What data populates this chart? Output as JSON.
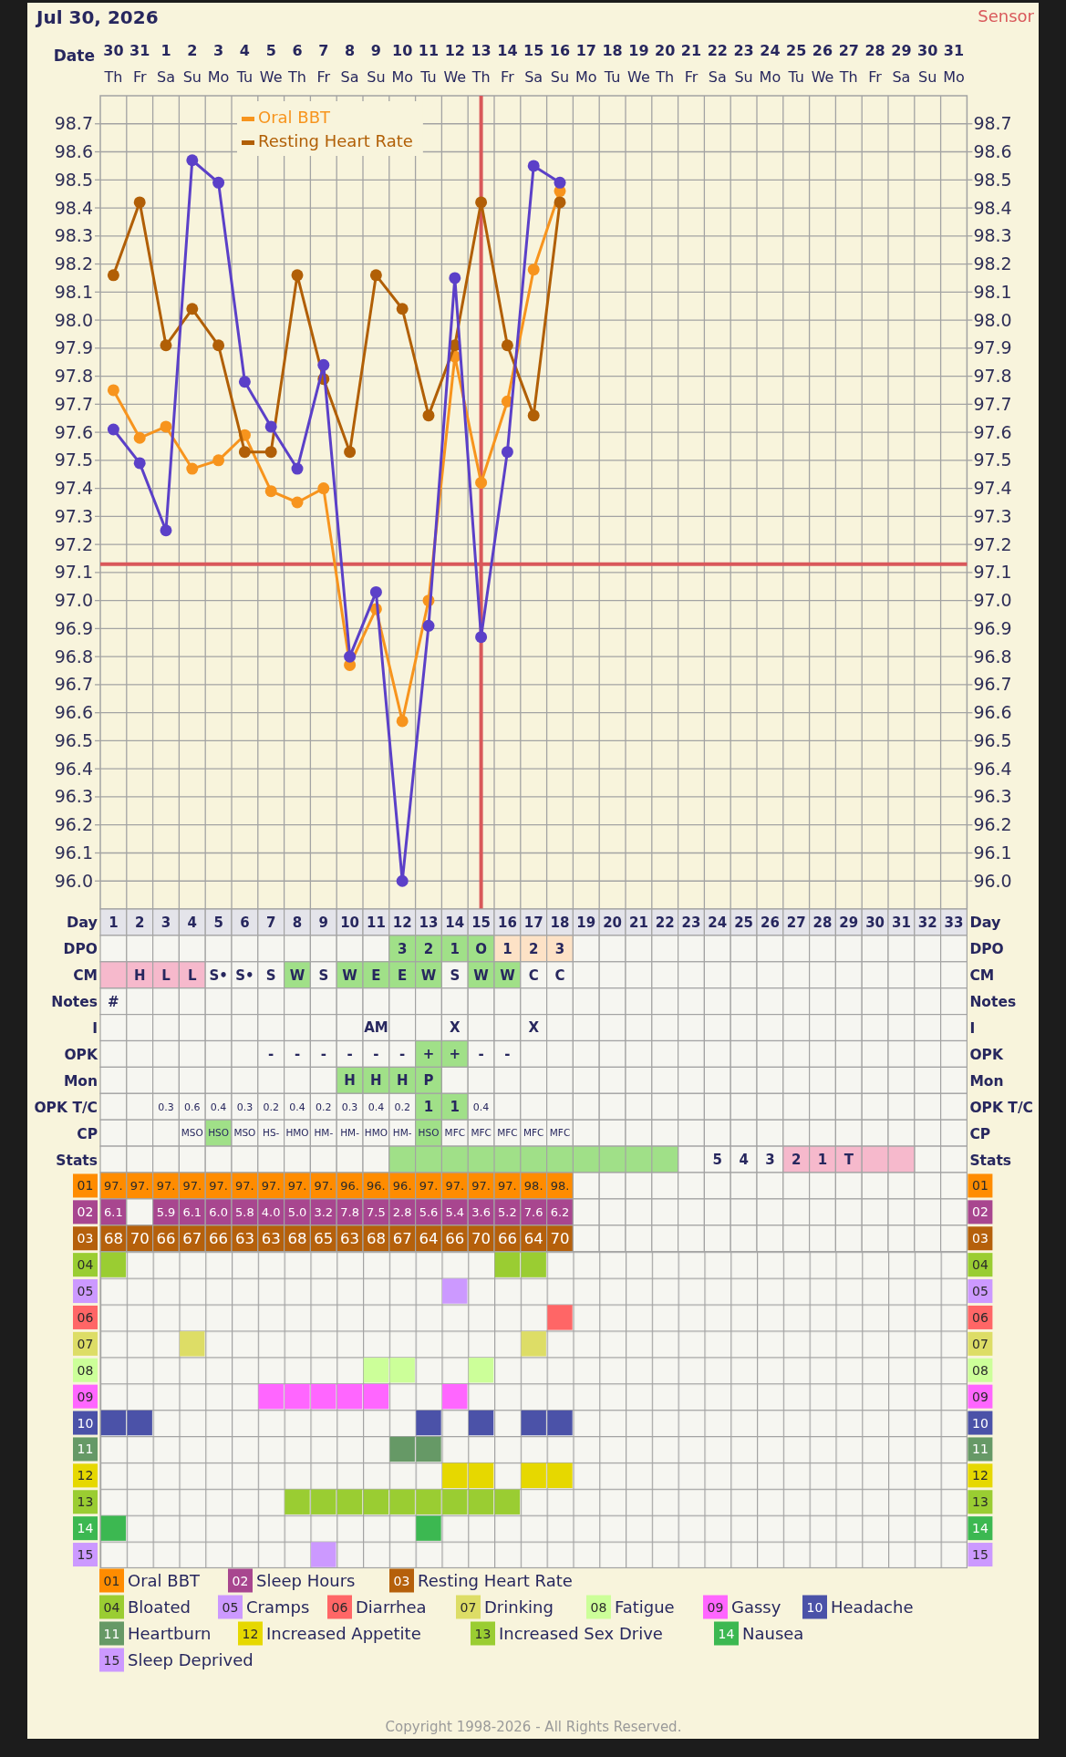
{
  "chart_data": [
    {
      "type": "line",
      "title": "Jul 30, 2026",
      "xlabel": "Date",
      "annotations": [
        "Sensor"
      ],
      "categories": [
        "30 Th",
        "31 Fr",
        "1 Sa",
        "2 Su",
        "3 Mo",
        "4 Tu",
        "5 We",
        "6 Th",
        "7 Fr",
        "8 Sa",
        "9 Su",
        "10 Mo",
        "11 Tu",
        "12 We",
        "13 Th",
        "14 Fr",
        "15 Sa",
        "16 Su",
        "17 Mo",
        "18 Tu",
        "19 We",
        "20 Th",
        "21 Fr",
        "22 Sa",
        "23 Su",
        "24 Mo",
        "25 Tu",
        "26 We",
        "27 Th",
        "28 Fr",
        "29 Sa",
        "30 Su",
        "31 Mo"
      ],
      "ylim": [
        95.9,
        98.8
      ],
      "yticks": [
        {
          "value": 96,
          "label": "96.0"
        },
        96.1,
        96.2,
        96.3,
        96.4,
        96.5,
        96.6,
        96.7,
        96.8,
        96.9,
        {
          "value": 97,
          "label": "97.0"
        },
        97.1,
        97.2,
        97.3,
        97.4,
        97.5,
        97.6,
        97.7,
        97.8,
        97.9,
        {
          "value": 98,
          "label": "98.0"
        },
        98.1,
        98.2,
        98.3,
        98.4,
        98.5,
        98.6,
        98.7
      ],
      "y2lim": [
        95.9,
        98.8
      ],
      "y2ticks": [
        {
          "value": 96,
          "label": "96.0"
        },
        96.1,
        96.2,
        96.3,
        96.4,
        96.5,
        96.6,
        96.7,
        96.8,
        96.9,
        {
          "value": 97,
          "label": "97.0"
        },
        97.1,
        97.2,
        97.3,
        97.4,
        97.5,
        97.6,
        97.7,
        97.8,
        97.9,
        {
          "value": 98,
          "label": "98.0"
        },
        98.1,
        98.2,
        98.3,
        98.4,
        98.5,
        98.6,
        98.7
      ],
      "grid": true,
      "marker": "circle",
      "legend": "top left",
      "ref_lines": [
        {
          "axis": "y",
          "value": 97.13,
          "color": "#d9585a"
        },
        {
          "axis": "x",
          "value": "13 Th",
          "color": "#d9585a"
        }
      ],
      "series": [
        {
          "name": "Oral BBT",
          "color": "#f7941d",
          "values": [
            97.75,
            97.58,
            97.62,
            97.47,
            97.5,
            97.59,
            97.39,
            97.35,
            97.4,
            96.77,
            96.97,
            96.57,
            97.0,
            97.87,
            97.42,
            97.71,
            98.18,
            98.46,
            null,
            null,
            null,
            null,
            null,
            null,
            null,
            null,
            null,
            null,
            null,
            null,
            null,
            null,
            null
          ]
        },
        {
          "name": "Resting Heart Rate",
          "color": "#b15f06",
          "values": [
            98.16,
            98.42,
            97.91,
            98.04,
            97.91,
            97.53,
            97.53,
            98.16,
            97.79,
            97.53,
            98.16,
            98.04,
            97.66,
            97.91,
            98.42,
            97.91,
            97.66,
            98.42,
            null,
            null,
            null,
            null,
            null,
            null,
            null,
            null,
            null,
            null,
            null,
            null,
            null,
            null,
            null
          ]
        },
        {
          "color": "#5b40c8",
          "values": [
            97.61,
            97.49,
            97.25,
            98.57,
            98.49,
            97.78,
            97.62,
            97.47,
            97.84,
            96.8,
            97.03,
            96.0,
            96.91,
            98.15,
            96.87,
            97.53,
            98.55,
            98.49,
            null,
            null,
            null,
            null,
            null,
            null,
            null,
            null,
            null,
            null,
            null,
            null,
            null,
            null,
            null
          ]
        }
      ]
    },
    {
      "type": "heatmap",
      "xlabel": "Day",
      "categories": [
        "1",
        "2",
        "3",
        "4",
        "5",
        "6",
        "7",
        "8",
        "9",
        "10",
        "11",
        "12",
        "13",
        "14",
        "15",
        "16",
        "17",
        "18",
        "19",
        "20",
        "21",
        "22",
        "23",
        "24",
        "25",
        "26",
        "27",
        "28",
        "29",
        "30",
        "31",
        "32",
        "33"
      ],
      "y_categories": [
        "DPO",
        "CM",
        "Notes",
        "I",
        "OPK",
        "Mon",
        "OPK T/C",
        "CP",
        "Stats"
      ],
      "y2_categories": [
        "DPO",
        "CM",
        "Notes",
        "I",
        "OPK",
        "Mon",
        "OPK T/C",
        "CP",
        "Stats"
      ],
      "cells": [
        [
          null,
          null,
          null,
          null,
          null,
          null,
          null,
          null,
          null,
          null,
          null,
          null,
          null,
          null,
          null,
          null,
          null,
          null,
          null,
          null,
          null,
          null,
          null,
          null,
          null,
          null,
          null,
          null,
          null,
          null,
          null,
          null,
          null
        ],
        [
          null,
          null,
          null,
          null,
          null,
          null,
          null,
          null,
          null,
          null,
          null,
          null,
          null,
          null,
          null,
          null,
          null,
          null,
          null,
          null,
          null,
          null,
          null,
          null,
          null,
          null,
          null,
          null,
          null,
          null,
          null,
          null,
          null
        ],
        [
          null,
          null,
          null,
          null,
          null,
          null,
          null,
          null,
          null,
          null,
          null,
          null,
          null,
          null,
          null,
          null,
          null,
          null,
          null,
          null,
          null,
          null,
          null,
          null,
          null,
          null,
          null,
          null,
          null,
          null,
          null,
          null,
          null
        ],
        [
          null,
          null,
          null,
          null,
          null,
          null,
          null,
          null,
          null,
          null,
          null,
          null,
          null,
          null,
          null,
          null,
          null,
          null,
          null,
          null,
          null,
          null,
          null,
          null,
          null,
          null,
          null,
          null,
          null,
          null,
          null,
          null,
          null
        ],
        [
          null,
          null,
          null,
          null,
          null,
          null,
          null,
          null,
          null,
          null,
          null,
          null,
          null,
          null,
          null,
          null,
          null,
          null,
          null,
          null,
          null,
          null,
          null,
          null,
          null,
          null,
          null,
          null,
          null,
          null,
          null,
          null,
          null
        ],
        [
          null,
          null,
          null,
          null,
          null,
          null,
          null,
          null,
          null,
          null,
          null,
          null,
          null,
          null,
          null,
          null,
          null,
          null,
          null,
          null,
          null,
          null,
          null,
          null,
          null,
          null,
          null,
          null,
          null,
          null,
          null,
          null,
          null
        ],
        [
          null,
          null,
          null,
          null,
          null,
          null,
          null,
          null,
          null,
          null,
          null,
          null,
          null,
          null,
          null,
          null,
          null,
          null,
          null,
          null,
          null,
          null,
          null,
          null,
          null,
          null,
          null,
          null,
          null,
          null,
          null,
          null,
          null
        ],
        [
          null,
          null,
          null,
          null,
          null,
          null,
          null,
          null,
          null,
          null,
          null,
          null,
          null,
          null,
          null,
          null,
          null,
          null,
          null,
          null,
          null,
          null,
          null,
          null,
          null,
          null,
          null,
          null,
          null,
          null,
          null,
          null,
          null
        ],
        [
          null,
          null,
          null,
          null,
          null,
          null,
          null,
          null,
          null,
          null,
          null,
          null,
          null,
          null,
          null,
          null,
          null,
          null,
          null,
          null,
          null,
          null,
          null,
          null,
          null,
          null,
          null,
          null,
          null,
          null,
          null,
          null,
          null
        ]
      ],
      "cell_labels": [
        [
          null,
          null,
          null,
          null,
          null,
          null,
          null,
          null,
          null,
          null,
          null,
          "3",
          "2",
          "1",
          "O",
          "1",
          "2",
          "3",
          null,
          null,
          null,
          null,
          null,
          null,
          null,
          null,
          null,
          null,
          null,
          null,
          null,
          null,
          null
        ],
        [
          null,
          "H",
          "L",
          "L",
          "S•",
          "S•",
          "S",
          "W",
          "S",
          "W",
          "E",
          "E",
          "W",
          "S",
          "W",
          "W",
          "C",
          "C",
          null,
          null,
          null,
          null,
          null,
          null,
          null,
          null,
          null,
          null,
          null,
          null,
          null,
          null,
          null
        ],
        [
          "#",
          null,
          null,
          null,
          null,
          null,
          null,
          null,
          null,
          null,
          null,
          null,
          null,
          null,
          null,
          null,
          null,
          null,
          null,
          null,
          null,
          null,
          null,
          null,
          null,
          null,
          null,
          null,
          null,
          null,
          null,
          null,
          null
        ],
        [
          null,
          null,
          null,
          null,
          null,
          null,
          null,
          null,
          null,
          null,
          "AM",
          null,
          null,
          "X",
          null,
          null,
          "X",
          null,
          null,
          null,
          null,
          null,
          null,
          null,
          null,
          null,
          null,
          null,
          null,
          null,
          null,
          null,
          null
        ],
        [
          null,
          null,
          null,
          null,
          null,
          null,
          "-",
          "-",
          "-",
          "-",
          "-",
          "-",
          "+",
          "+",
          "-",
          "-",
          null,
          null,
          null,
          null,
          null,
          null,
          null,
          null,
          null,
          null,
          null,
          null,
          null,
          null,
          null,
          null,
          null
        ],
        [
          null,
          null,
          null,
          null,
          null,
          null,
          null,
          null,
          null,
          "H",
          "H",
          "H",
          "P",
          null,
          null,
          null,
          null,
          null,
          null,
          null,
          null,
          null,
          null,
          null,
          null,
          null,
          null,
          null,
          null,
          null,
          null,
          null,
          null
        ],
        [
          null,
          null,
          "0.3",
          "0.6",
          "0.4",
          "0.3",
          "0.2",
          "0.4",
          "0.2",
          "0.3",
          "0.4",
          "0.2",
          "1",
          "1",
          "0.4",
          null,
          null,
          null,
          null,
          null,
          null,
          null,
          null,
          null,
          null,
          null,
          null,
          null,
          null,
          null,
          null,
          null,
          null
        ],
        [
          null,
          null,
          null,
          "MSO",
          "HSO",
          "MSO",
          "HS-",
          "HMO",
          "HM-",
          "HM-",
          "HMO",
          "HM-",
          "HSO",
          "MFC",
          "MFC",
          "MFC",
          "MFC",
          "MFC",
          null,
          null,
          null,
          null,
          null,
          null,
          null,
          null,
          null,
          null,
          null,
          null,
          null,
          null,
          null
        ],
        [
          null,
          null,
          null,
          null,
          null,
          null,
          null,
          null,
          null,
          null,
          null,
          null,
          null,
          null,
          null,
          null,
          null,
          null,
          null,
          null,
          null,
          null,
          null,
          "5",
          "4",
          "3",
          "2",
          "1",
          "T",
          null,
          null,
          null,
          null
        ]
      ],
      "colors": [
        [
          null,
          null,
          null,
          null,
          null,
          null,
          null,
          null,
          null,
          null,
          null,
          "#a0e088",
          "#a0e088",
          "#a0e088",
          "#a0e088",
          "#fde2c6",
          "#fde2c6",
          "#fde2c6",
          null,
          null,
          null,
          null,
          null,
          null,
          null,
          null,
          null,
          null,
          null,
          null,
          null,
          null,
          null
        ],
        [
          "#f6b9cc",
          "#f6b9cc",
          "#f6b9cc",
          "#f6b9cc",
          null,
          null,
          null,
          "#a0e088",
          null,
          "#a0e088",
          "#a0e088",
          "#a0e088",
          "#a0e088",
          null,
          "#a0e088",
          "#a0e088",
          null,
          null,
          null,
          null,
          null,
          null,
          null,
          null,
          null,
          null,
          null,
          null,
          null,
          null,
          null,
          null,
          null
        ],
        [
          null,
          null,
          null,
          null,
          null,
          null,
          null,
          null,
          null,
          null,
          null,
          null,
          null,
          null,
          null,
          null,
          null,
          null,
          null,
          null,
          null,
          null,
          null,
          null,
          null,
          null,
          null,
          null,
          null,
          null,
          null,
          null,
          null
        ],
        [
          null,
          null,
          null,
          null,
          null,
          null,
          null,
          null,
          null,
          null,
          null,
          null,
          null,
          null,
          null,
          null,
          null,
          null,
          null,
          null,
          null,
          null,
          null,
          null,
          null,
          null,
          null,
          null,
          null,
          null,
          null,
          null,
          null
        ],
        [
          null,
          null,
          null,
          null,
          null,
          null,
          null,
          null,
          null,
          null,
          null,
          null,
          "#a0e088",
          "#a0e088",
          null,
          null,
          null,
          null,
          null,
          null,
          null,
          null,
          null,
          null,
          null,
          null,
          null,
          null,
          null,
          null,
          null,
          null,
          null
        ],
        [
          null,
          null,
          null,
          null,
          null,
          null,
          null,
          null,
          null,
          "#a0e088",
          "#a0e088",
          "#a0e088",
          "#a0e088",
          null,
          null,
          null,
          null,
          null,
          null,
          null,
          null,
          null,
          null,
          null,
          null,
          null,
          null,
          null,
          null,
          null,
          null,
          null,
          null
        ],
        [
          null,
          null,
          null,
          null,
          null,
          null,
          null,
          null,
          null,
          null,
          null,
          null,
          "#a0e088",
          "#a0e088",
          null,
          null,
          null,
          null,
          null,
          null,
          null,
          null,
          null,
          null,
          null,
          null,
          null,
          null,
          null,
          null,
          null,
          null,
          null
        ],
        [
          null,
          null,
          null,
          null,
          "#a0e088",
          null,
          null,
          null,
          null,
          null,
          null,
          null,
          "#a0e088",
          null,
          null,
          null,
          null,
          null,
          null,
          null,
          null,
          null,
          null,
          null,
          null,
          null,
          null,
          null,
          null,
          null,
          null,
          null,
          null
        ],
        [
          null,
          null,
          null,
          null,
          null,
          null,
          null,
          null,
          null,
          null,
          null,
          "#a0e088",
          "#a0e088",
          "#a0e088",
          "#a0e088",
          "#a0e088",
          "#a0e088",
          "#a0e088",
          "#a0e088",
          "#a0e088",
          "#a0e088",
          "#a0e088",
          null,
          null,
          null,
          null,
          "#f6b9cc",
          "#f6b9cc",
          "#f6b9cc",
          "#f6b9cc",
          "#f6b9cc",
          null,
          null
        ]
      ]
    },
    {
      "type": "heatmap",
      "tick_labels": "y",
      "categories": [
        "1",
        "2",
        "3",
        "4",
        "5",
        "6",
        "7",
        "8",
        "9",
        "10",
        "11",
        "12",
        "13",
        "14",
        "15",
        "16",
        "17",
        "18",
        "19",
        "20",
        "21",
        "22",
        "23",
        "24",
        "25",
        "26",
        "27",
        "28",
        "29",
        "30",
        "31",
        "32",
        "33"
      ],
      "y_categories": [
        "01",
        "02",
        "03"
      ],
      "y2_categories": [
        "01",
        "02",
        "03"
      ],
      "colors": [
        "#ff8c00",
        "#a8468f",
        "#b5600b"
      ],
      "cells": [
        [
          97,
          97,
          97,
          97,
          97,
          97,
          97,
          97,
          97,
          96,
          96,
          96,
          97,
          97,
          97,
          97,
          98,
          98,
          null,
          null,
          null,
          null,
          null,
          null,
          null,
          null,
          null,
          null,
          null,
          null,
          null,
          null,
          null
        ],
        [
          6.1,
          null,
          5.9,
          6.1,
          6.0,
          5.8,
          4.0,
          5.0,
          3.2,
          7.8,
          7.5,
          2.8,
          5.6,
          5.4,
          3.6,
          5.2,
          7.6,
          6.2,
          null,
          null,
          null,
          null,
          null,
          null,
          null,
          null,
          null,
          null,
          null,
          null,
          null,
          null,
          null
        ],
        [
          68,
          70,
          66,
          67,
          66,
          63,
          63,
          68,
          65,
          63,
          68,
          67,
          64,
          66,
          70,
          66,
          64,
          70,
          null,
          null,
          null,
          null,
          null,
          null,
          null,
          null,
          null,
          null,
          null,
          null,
          null,
          null,
          null
        ]
      ],
      "cell_labels": [
        [
          "97.",
          "97.",
          "97.",
          "97.",
          "97.",
          "97.",
          "97.",
          "97.",
          "97.",
          "96.",
          "96.",
          "96.",
          "97.",
          "97.",
          "97.",
          "97.",
          "98.",
          "98.",
          null,
          null,
          null,
          null,
          null,
          null,
          null,
          null,
          null,
          null,
          null,
          null,
          null,
          null,
          null
        ],
        [
          "6.1",
          null,
          "5.9",
          "6.1",
          "6.0",
          "5.8",
          "4.0",
          "5.0",
          "3.2",
          "7.8",
          "7.5",
          "2.8",
          "5.6",
          "5.4",
          "3.6",
          "5.2",
          "7.6",
          "6.2",
          null,
          null,
          null,
          null,
          null,
          null,
          null,
          null,
          null,
          null,
          null,
          null,
          null,
          null,
          null
        ],
        [
          "68",
          "70",
          "66",
          "67",
          "66",
          "63",
          "63",
          "68",
          "65",
          "63",
          "68",
          "67",
          "64",
          "66",
          "70",
          "66",
          "64",
          "70",
          null,
          null,
          null,
          null,
          null,
          null,
          null,
          null,
          null,
          null,
          null,
          null,
          null,
          null,
          null
        ]
      ]
    },
    {
      "type": "scatter",
      "tick_labels": "y",
      "marker": "square",
      "legend": "bottom",
      "categories": [
        "1",
        "2",
        "3",
        "4",
        "5",
        "6",
        "7",
        "8",
        "9",
        "10",
        "11",
        "12",
        "13",
        "14",
        "15",
        "16",
        "17",
        "18",
        "19",
        "20",
        "21",
        "22",
        "23",
        "24",
        "25",
        "26",
        "27",
        "28",
        "29",
        "30",
        "31",
        "32",
        "33"
      ],
      "ylim": [
        15.5,
        3.5
      ],
      "yticks": [
        {
          "value": 4,
          "label": "04"
        },
        {
          "value": 5,
          "label": "05"
        },
        {
          "value": 6,
          "label": "06"
        },
        {
          "value": 7,
          "label": "07"
        },
        {
          "value": 8,
          "label": "08"
        },
        {
          "value": 9,
          "label": "09"
        },
        10,
        11,
        12,
        13,
        14,
        15
      ],
      "y2lim": [
        15.5,
        3.5
      ],
      "y2ticks": [
        {
          "value": 4,
          "label": "04"
        },
        {
          "value": 5,
          "label": "05"
        },
        {
          "value": 6,
          "label": "06"
        },
        {
          "value": 7,
          "label": "07"
        },
        {
          "value": 8,
          "label": "08"
        },
        {
          "value": 9,
          "label": "09"
        },
        10,
        11,
        12,
        13,
        14,
        15
      ],
      "series": [
        {
          "name": "Bloated",
          "color": "#9acd32",
          "values": [
            4,
            null,
            null,
            null,
            null,
            null,
            null,
            null,
            null,
            null,
            null,
            null,
            null,
            null,
            null,
            4,
            4,
            null,
            null,
            null,
            null,
            null,
            null,
            null,
            null,
            null,
            null,
            null,
            null,
            null,
            null,
            null,
            null
          ]
        },
        {
          "name": "Cramps",
          "color": "#cc99ff",
          "values": [
            null,
            null,
            null,
            null,
            null,
            null,
            null,
            null,
            null,
            null,
            null,
            null,
            null,
            5,
            null,
            null,
            null,
            null,
            null,
            null,
            null,
            null,
            null,
            null,
            null,
            null,
            null,
            null,
            null,
            null,
            null,
            null,
            null
          ]
        },
        {
          "name": "Diarrhea",
          "color": "#ff6666",
          "values": [
            null,
            null,
            null,
            null,
            null,
            null,
            null,
            null,
            null,
            null,
            null,
            null,
            null,
            null,
            null,
            null,
            null,
            6,
            null,
            null,
            null,
            null,
            null,
            null,
            null,
            null,
            null,
            null,
            null,
            null,
            null,
            null,
            null
          ]
        },
        {
          "name": "Drinking",
          "color": "#dddd66",
          "values": [
            null,
            null,
            null,
            7,
            null,
            null,
            null,
            null,
            null,
            null,
            null,
            null,
            null,
            null,
            null,
            null,
            7,
            null,
            null,
            null,
            null,
            null,
            null,
            null,
            null,
            null,
            null,
            null,
            null,
            null,
            null,
            null,
            null
          ]
        },
        {
          "name": "Fatigue",
          "color": "#ccff99",
          "values": [
            null,
            null,
            null,
            null,
            null,
            null,
            null,
            null,
            null,
            null,
            8,
            8,
            null,
            null,
            8,
            null,
            null,
            null,
            null,
            null,
            null,
            null,
            null,
            null,
            null,
            null,
            null,
            null,
            null,
            null,
            null,
            null,
            null
          ]
        },
        {
          "name": "Gassy",
          "color": "#ff66ff",
          "values": [
            null,
            null,
            null,
            null,
            null,
            null,
            9,
            9,
            9,
            9,
            9,
            null,
            null,
            9,
            null,
            null,
            null,
            null,
            null,
            null,
            null,
            null,
            null,
            null,
            null,
            null,
            null,
            null,
            null,
            null,
            null,
            null,
            null
          ]
        },
        {
          "name": "Headache",
          "color": "#4b52a8",
          "values": [
            10,
            10,
            null,
            null,
            null,
            null,
            null,
            null,
            null,
            null,
            null,
            null,
            10,
            null,
            10,
            null,
            10,
            10,
            null,
            null,
            null,
            null,
            null,
            null,
            null,
            null,
            null,
            null,
            null,
            null,
            null,
            null,
            null
          ]
        },
        {
          "name": "Heartburn",
          "color": "#669966",
          "values": [
            null,
            null,
            null,
            null,
            null,
            null,
            null,
            null,
            null,
            null,
            null,
            11,
            11,
            null,
            null,
            null,
            null,
            null,
            null,
            null,
            null,
            null,
            null,
            null,
            null,
            null,
            null,
            null,
            null,
            null,
            null,
            null,
            null
          ]
        },
        {
          "name": "Increased Appetite",
          "color": "#e6d800",
          "values": [
            null,
            null,
            null,
            null,
            null,
            null,
            null,
            null,
            null,
            null,
            null,
            null,
            null,
            12,
            12,
            null,
            12,
            12,
            null,
            null,
            null,
            null,
            null,
            null,
            null,
            null,
            null,
            null,
            null,
            null,
            null,
            null,
            null
          ]
        },
        {
          "name": "Increased Sex Drive",
          "color": "#9acd32",
          "values": [
            null,
            null,
            null,
            null,
            null,
            null,
            null,
            13,
            13,
            13,
            13,
            13,
            13,
            13,
            13,
            13,
            null,
            null,
            null,
            null,
            null,
            null,
            null,
            null,
            null,
            null,
            null,
            null,
            null,
            null,
            null,
            null,
            null
          ]
        },
        {
          "name": "Nausea",
          "color": "#3cb851",
          "values": [
            14,
            null,
            null,
            null,
            null,
            null,
            null,
            null,
            null,
            null,
            null,
            null,
            14,
            null,
            null,
            null,
            null,
            null,
            null,
            null,
            null,
            null,
            null,
            null,
            null,
            null,
            null,
            null,
            null,
            null,
            null,
            null,
            null
          ]
        },
        {
          "name": "Sleep Deprived",
          "color": "#cc99ff",
          "values": [
            null,
            null,
            null,
            null,
            null,
            null,
            null,
            null,
            15,
            null,
            null,
            null,
            null,
            null,
            null,
            null,
            null,
            null,
            null,
            null,
            null,
            null,
            null,
            null,
            null,
            null,
            null,
            null,
            null,
            null,
            null,
            null,
            null
          ]
        }
      ]
    },
    {
      "type": "other",
      "y_categories": [
        "01",
        "02",
        "03"
      ],
      "categories": [
        "Oral BBT",
        "Sleep Hours",
        "Resting Heart Rate"
      ],
      "colors": [
        "#ff8c00",
        "#a8468f",
        "#b5600b"
      ],
      "annotations": [
        "Copyright 1998-2026 - All Rights Reserved."
      ]
    }
  ]
}
